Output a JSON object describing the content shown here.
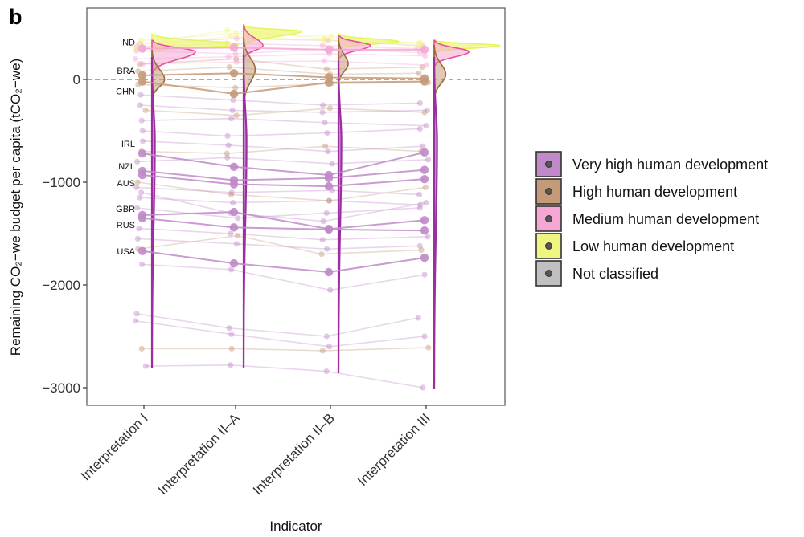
{
  "panel_label": "b",
  "chart_data": {
    "type": "line",
    "subtype": "slope chart with jittered points and half-violin densities",
    "xlabel": "Indicator",
    "ylabel": "Remaining CO₂−we budget per capita (tCO₂−we)",
    "categories": [
      "Interpretation I",
      "Interpretation II–A",
      "Interpretation II–B",
      "Interpretation III"
    ],
    "ylim": [
      -3150,
      700
    ],
    "yticks": [
      0,
      -1000,
      -2000,
      -3000
    ],
    "ytick_labels": [
      "0",
      "−1000",
      "−2000",
      "−3000"
    ],
    "reference_line": {
      "y": 0,
      "style": "dashed"
    },
    "grid": false,
    "legend": {
      "placement": "right",
      "entries": [
        {
          "key": "very_high",
          "label": "Very high human development",
          "color": "#c08ac8"
        },
        {
          "key": "high",
          "label": "High human development",
          "color": "#c49a78"
        },
        {
          "key": "medium",
          "label": "Medium human development",
          "color": "#f4a6d4"
        },
        {
          "key": "low",
          "label": "Low human development",
          "color": "#eef580"
        },
        {
          "key": "not_classified",
          "label": "Not classified",
          "color": "#c0c0c0"
        }
      ]
    },
    "highlighted_series": [
      {
        "name": "IND",
        "group": "medium",
        "values": [
          300,
          310,
          290,
          290
        ]
      },
      {
        "name": "BRA",
        "group": "high",
        "values": [
          40,
          60,
          20,
          10
        ]
      },
      {
        "name": "CHN",
        "group": "high",
        "values": [
          -20,
          -140,
          -30,
          -20
        ]
      },
      {
        "name": "IRL",
        "group": "very_high",
        "values": [
          -720,
          -850,
          -930,
          -710
        ]
      },
      {
        "name": "NZL",
        "group": "very_high",
        "values": [
          -890,
          -980,
          -960,
          -880
        ]
      },
      {
        "name": "AUS",
        "group": "very_high",
        "values": [
          -930,
          -1020,
          -1040,
          -970
        ]
      },
      {
        "name": "GBR",
        "group": "very_high",
        "values": [
          -1320,
          -1290,
          -1455,
          -1370
        ]
      },
      {
        "name": "RUS",
        "group": "very_high",
        "values": [
          -1350,
          -1440,
          -1460,
          -1470
        ]
      },
      {
        "name": "USA",
        "group": "very_high",
        "values": [
          -1670,
          -1790,
          -1875,
          -1735
        ]
      }
    ],
    "background_series": [
      {
        "group": "very_high",
        "values": [
          -150,
          -200,
          -250,
          -230
        ]
      },
      {
        "group": "very_high",
        "values": [
          -250,
          -300,
          -320,
          -300
        ]
      },
      {
        "group": "very_high",
        "values": [
          -400,
          -380,
          -420,
          -450
        ]
      },
      {
        "group": "very_high",
        "values": [
          -500,
          -550,
          -520,
          -480
        ]
      },
      {
        "group": "very_high",
        "values": [
          -600,
          -640,
          -700,
          -650
        ]
      },
      {
        "group": "very_high",
        "values": [
          -800,
          -760,
          -820,
          -780
        ]
      },
      {
        "group": "very_high",
        "values": [
          -1050,
          -1100,
          -1080,
          -1120
        ]
      },
      {
        "group": "very_high",
        "values": [
          -1150,
          -1200,
          -1180,
          -1220
        ]
      },
      {
        "group": "very_high",
        "values": [
          -1250,
          -1350,
          -1300,
          -1250
        ]
      },
      {
        "group": "very_high",
        "values": [
          -1100,
          -1300,
          -1380,
          -1200
        ]
      },
      {
        "group": "very_high",
        "values": [
          -1450,
          -1500,
          -1560,
          -1530
        ]
      },
      {
        "group": "very_high",
        "values": [
          -1550,
          -1600,
          -1650,
          -1620
        ]
      },
      {
        "group": "very_high",
        "values": [
          -1800,
          -1850,
          -2050,
          -1900
        ]
      },
      {
        "group": "very_high",
        "values": [
          -2280,
          -2420,
          -2500,
          -2320
        ]
      },
      {
        "group": "very_high",
        "values": [
          -2350,
          -2480,
          -2600,
          -2500
        ]
      },
      {
        "group": "very_high",
        "values": [
          -2790,
          -2780,
          -2840,
          -3000
        ]
      },
      {
        "group": "high",
        "values": [
          150,
          200,
          100,
          120
        ]
      },
      {
        "group": "high",
        "values": [
          80,
          120,
          50,
          60
        ]
      },
      {
        "group": "high",
        "values": [
          -50,
          -80,
          -40,
          -30
        ]
      },
      {
        "group": "high",
        "values": [
          -300,
          -350,
          -280,
          -320
        ]
      },
      {
        "group": "high",
        "values": [
          -700,
          -720,
          -650,
          -700
        ]
      },
      {
        "group": "high",
        "values": [
          -1000,
          -1120,
          -1180,
          -1050
        ]
      },
      {
        "group": "high",
        "values": [
          -1650,
          -1520,
          -1700,
          -1660
        ]
      },
      {
        "group": "high",
        "values": [
          -2620,
          -2620,
          -2640,
          -2610
        ]
      },
      {
        "group": "medium",
        "values": [
          350,
          400,
          380,
          330
        ]
      },
      {
        "group": "medium",
        "values": [
          280,
          250,
          300,
          260
        ]
      },
      {
        "group": "medium",
        "values": [
          200,
          220,
          250,
          230
        ]
      },
      {
        "group": "medium",
        "values": [
          150,
          170,
          180,
          140
        ]
      },
      {
        "group": "medium",
        "values": [
          320,
          350,
          330,
          300
        ]
      },
      {
        "group": "low",
        "values": [
          380,
          450,
          420,
          350
        ]
      },
      {
        "group": "low",
        "values": [
          340,
          480,
          400,
          320
        ]
      },
      {
        "group": "low",
        "values": [
          300,
          420,
          380,
          360
        ]
      }
    ],
    "densities": [
      [
        {
          "group": "low",
          "min": 270,
          "max": 440,
          "mode": 340,
          "peak": 0.9
        },
        {
          "group": "medium",
          "min": 60,
          "max": 380,
          "mode": 270,
          "peak": 0.45
        },
        {
          "group": "high",
          "min": -200,
          "max": 280,
          "mode": 0,
          "peak": 0.13
        },
        {
          "group": "very_high",
          "min": -2800,
          "max": 210,
          "mode": -600,
          "peak": 0.03
        }
      ],
      [
        {
          "group": "low",
          "min": 330,
          "max": 520,
          "mode": 470,
          "peak": 0.6
        },
        {
          "group": "medium",
          "min": 200,
          "max": 530,
          "mode": 330,
          "peak": 0.2
        },
        {
          "group": "high",
          "min": -250,
          "max": 400,
          "mode": 100,
          "peak": 0.12
        },
        {
          "group": "very_high",
          "min": -2800,
          "max": 230,
          "mode": -600,
          "peak": 0.03
        }
      ],
      [
        {
          "group": "low",
          "min": 300,
          "max": 440,
          "mode": 370,
          "peak": 0.62
        },
        {
          "group": "medium",
          "min": 200,
          "max": 430,
          "mode": 330,
          "peak": 0.33
        },
        {
          "group": "high",
          "min": -50,
          "max": 400,
          "mode": 150,
          "peak": 0.1
        },
        {
          "group": "very_high",
          "min": -2850,
          "max": 180,
          "mode": -600,
          "peak": 0.03
        }
      ],
      [
        {
          "group": "low",
          "min": 260,
          "max": 380,
          "mode": 330,
          "peak": 0.68
        },
        {
          "group": "medium",
          "min": 130,
          "max": 380,
          "mode": 270,
          "peak": 0.36
        },
        {
          "group": "high",
          "min": -200,
          "max": 330,
          "mode": 50,
          "peak": 0.12
        },
        {
          "group": "very_high",
          "min": -3000,
          "max": 210,
          "mode": -600,
          "peak": 0.03
        }
      ]
    ],
    "outline_colors": {
      "very_high": "#9b2fa0",
      "high": "#9a6a3c",
      "medium": "#e8509b",
      "low": "#e6f55a",
      "not_classified": "#888888"
    }
  }
}
